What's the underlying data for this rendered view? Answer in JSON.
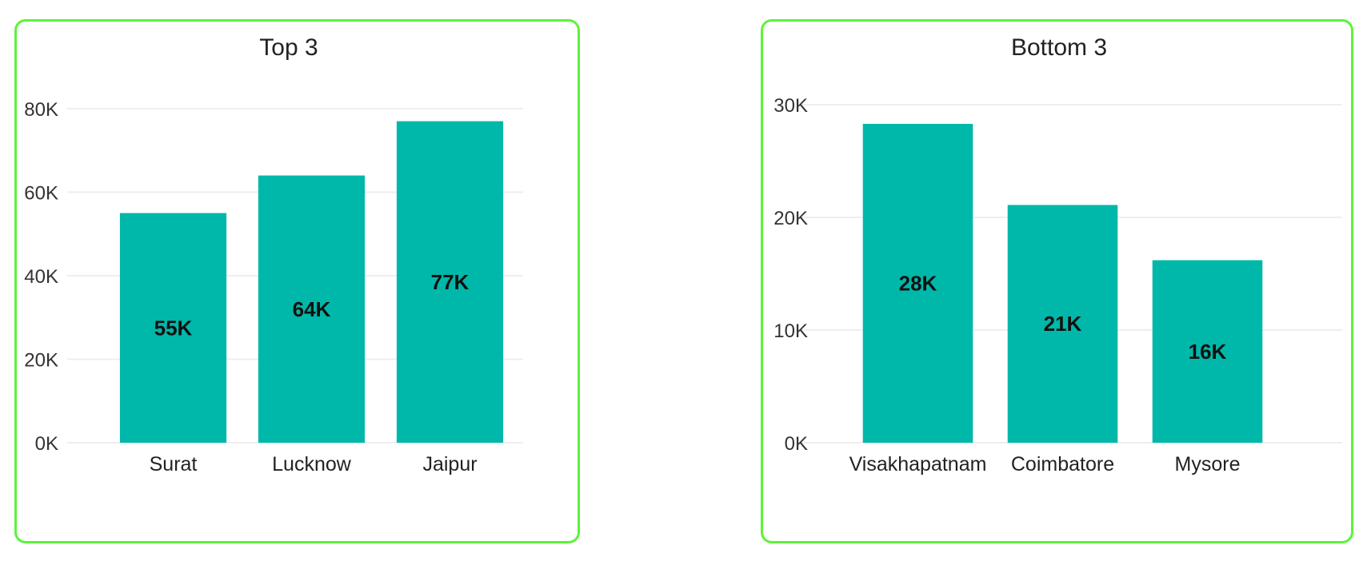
{
  "bar_color": "#00b8a9",
  "border_color": "#5cf33a",
  "chart_data": [
    {
      "type": "bar",
      "title": "Top 3",
      "categories": [
        "Surat",
        "Lucknow",
        "Jaipur"
      ],
      "values": [
        55000,
        64000,
        77000
      ],
      "data_labels": [
        "55K",
        "64K",
        "77K"
      ],
      "ylim": [
        0,
        80000
      ],
      "yticks": [
        0,
        20000,
        40000,
        60000,
        80000
      ],
      "ytick_labels": [
        "0K",
        "20K",
        "40K",
        "60K",
        "80K"
      ],
      "grid": true,
      "legend": "none"
    },
    {
      "type": "bar",
      "title": "Bottom 3",
      "categories": [
        "Visakhapatnam",
        "Coimbatore",
        "Mysore"
      ],
      "values": [
        28300,
        21100,
        16200
      ],
      "data_labels": [
        "28K",
        "21K",
        "16K"
      ],
      "ylim": [
        0,
        30000
      ],
      "yticks": [
        0,
        10000,
        20000,
        30000
      ],
      "ytick_labels": [
        "0K",
        "10K",
        "20K",
        "30K"
      ],
      "grid": true,
      "legend": "none"
    }
  ]
}
